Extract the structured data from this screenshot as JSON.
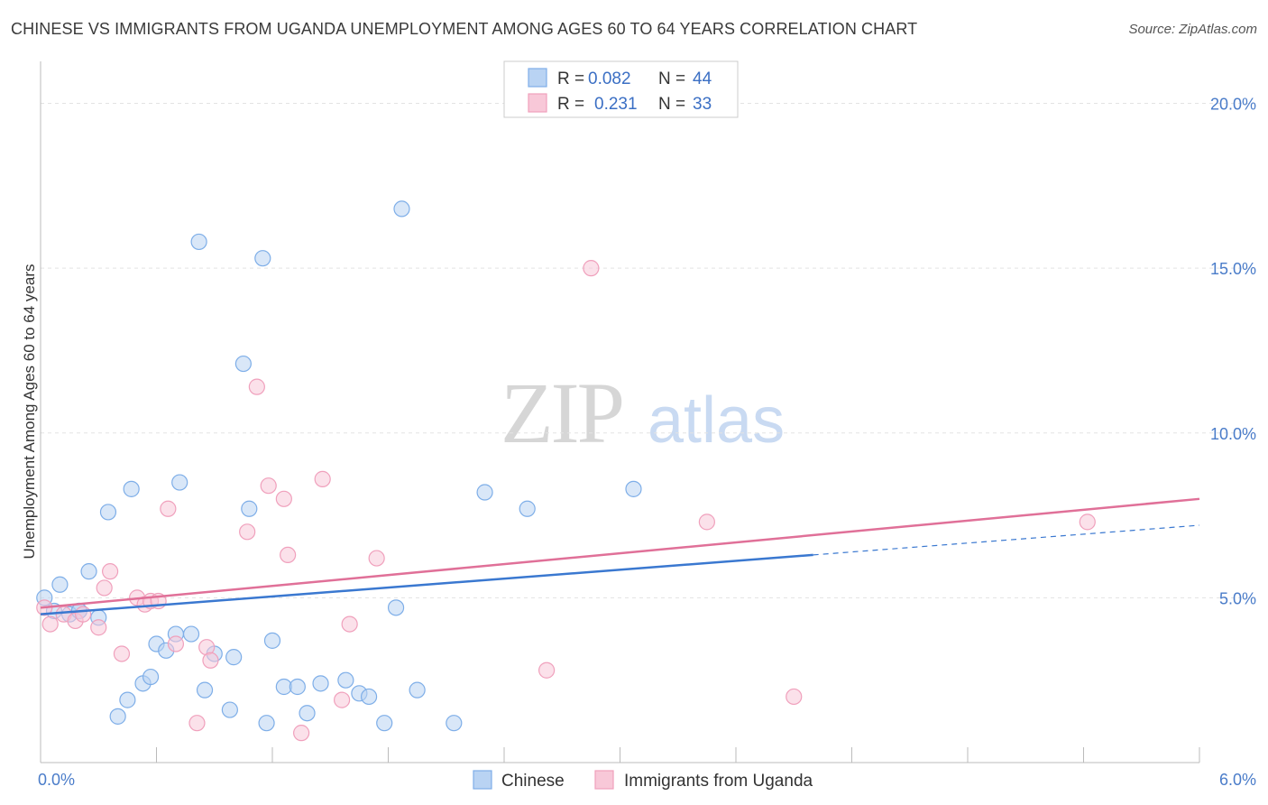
{
  "title": "CHINESE VS IMMIGRANTS FROM UGANDA UNEMPLOYMENT AMONG AGES 60 TO 64 YEARS CORRELATION CHART",
  "source": "Source: ZipAtlas.com",
  "watermark": {
    "zip": "ZIP",
    "atlas": "atlas"
  },
  "chart_data": {
    "type": "scatter",
    "xlabel": "",
    "ylabel": "Unemployment Among Ages 60 to 64 years",
    "xlim": [
      0,
      6
    ],
    "ylim": [
      0,
      21
    ],
    "x_tick_labels": [
      {
        "value": 0,
        "label": "0.0%"
      },
      {
        "value": 6,
        "label": "6.0%"
      }
    ],
    "y_tick_labels": [
      {
        "value": 5,
        "label": "5.0%"
      },
      {
        "value": 10,
        "label": "10.0%"
      },
      {
        "value": 15,
        "label": "15.0%"
      },
      {
        "value": 20,
        "label": "20.0%"
      }
    ],
    "legend": {
      "entries": [
        {
          "r_label": "R =",
          "r_value": "0.082",
          "n_label": "N =",
          "n_value": "44"
        },
        {
          "r_label": "R =",
          "r_value": "0.231",
          "n_label": "N =",
          "n_value": "33"
        }
      ]
    },
    "series": [
      {
        "name": "Chinese",
        "color": "#7eaee8",
        "fill": "#b9d3f3",
        "trend_color": "#3a78d0",
        "trend": {
          "x0": 0,
          "y0": 4.5,
          "x1": 4.0,
          "y1": 6.3,
          "dash_to_x": 6.0,
          "dash_to_y": 7.2
        },
        "points": [
          [
            0.02,
            5.0
          ],
          [
            0.07,
            4.6
          ],
          [
            0.1,
            5.4
          ],
          [
            0.2,
            4.6
          ],
          [
            0.15,
            4.5
          ],
          [
            0.25,
            5.8
          ],
          [
            0.3,
            4.4
          ],
          [
            0.35,
            7.6
          ],
          [
            0.4,
            1.4
          ],
          [
            0.45,
            1.9
          ],
          [
            0.47,
            8.3
          ],
          [
            0.53,
            2.4
          ],
          [
            0.57,
            2.6
          ],
          [
            0.6,
            3.6
          ],
          [
            0.65,
            3.4
          ],
          [
            0.7,
            3.9
          ],
          [
            0.72,
            8.5
          ],
          [
            0.78,
            3.9
          ],
          [
            0.82,
            15.8
          ],
          [
            0.85,
            2.2
          ],
          [
            0.9,
            3.3
          ],
          [
            0.98,
            1.6
          ],
          [
            1.0,
            3.2
          ],
          [
            1.05,
            12.1
          ],
          [
            1.08,
            7.7
          ],
          [
            1.15,
            15.3
          ],
          [
            1.17,
            1.2
          ],
          [
            1.2,
            3.7
          ],
          [
            1.26,
            2.3
          ],
          [
            1.33,
            2.3
          ],
          [
            1.38,
            1.5
          ],
          [
            1.45,
            2.4
          ],
          [
            1.58,
            2.5
          ],
          [
            1.65,
            2.1
          ],
          [
            1.7,
            2.0
          ],
          [
            1.78,
            1.2
          ],
          [
            1.84,
            4.7
          ],
          [
            1.87,
            16.8
          ],
          [
            1.95,
            2.2
          ],
          [
            2.14,
            1.2
          ],
          [
            2.3,
            8.2
          ],
          [
            2.52,
            7.7
          ],
          [
            3.07,
            8.3
          ],
          [
            0.2,
            4.6
          ]
        ]
      },
      {
        "name": "Immigrants from Uganda",
        "color": "#f0a0bc",
        "fill": "#f8c8d8",
        "trend_color": "#e07098",
        "trend": {
          "x0": 0,
          "y0": 4.7,
          "x1": 6.0,
          "y1": 8.0
        },
        "points": [
          [
            0.02,
            4.7
          ],
          [
            0.05,
            4.2
          ],
          [
            0.12,
            4.5
          ],
          [
            0.18,
            4.3
          ],
          [
            0.22,
            4.5
          ],
          [
            0.3,
            4.1
          ],
          [
            0.33,
            5.3
          ],
          [
            0.36,
            5.8
          ],
          [
            0.42,
            3.3
          ],
          [
            0.5,
            5.0
          ],
          [
            0.54,
            4.8
          ],
          [
            0.57,
            4.9
          ],
          [
            0.61,
            4.9
          ],
          [
            0.66,
            7.7
          ],
          [
            0.7,
            3.6
          ],
          [
            0.81,
            1.2
          ],
          [
            0.86,
            3.5
          ],
          [
            0.88,
            3.1
          ],
          [
            1.07,
            7.0
          ],
          [
            1.12,
            11.4
          ],
          [
            1.18,
            8.4
          ],
          [
            1.26,
            8.0
          ],
          [
            1.28,
            6.3
          ],
          [
            1.35,
            0.9
          ],
          [
            1.46,
            8.6
          ],
          [
            1.56,
            1.9
          ],
          [
            1.6,
            4.2
          ],
          [
            1.74,
            6.2
          ],
          [
            2.62,
            2.8
          ],
          [
            2.85,
            15.0
          ],
          [
            3.45,
            7.3
          ],
          [
            3.9,
            2.0
          ],
          [
            5.42,
            7.3
          ]
        ]
      }
    ]
  },
  "bottom_legend": [
    {
      "label": "Chinese"
    },
    {
      "label": "Immigrants from Uganda"
    }
  ]
}
